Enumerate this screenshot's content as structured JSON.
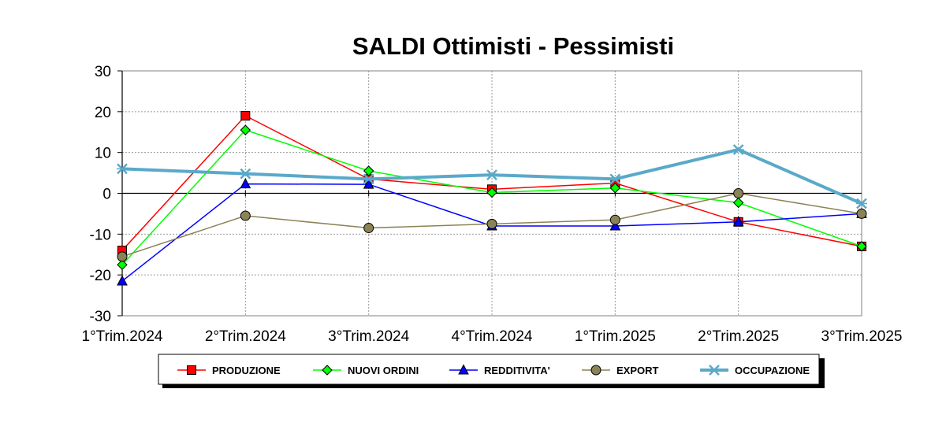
{
  "chart_data": {
    "type": "line",
    "title": "SALDI Ottimisti - Pessimisti",
    "xlabel": "",
    "ylabel": "",
    "categories": [
      "1°Trim.2024",
      "2°Trim.2024",
      "3°Trim.2024",
      "4°Trim.2024",
      "1°Trim.2025",
      "2°Trim.2025",
      "3°Trim.2025"
    ],
    "ylim": [
      -30,
      30
    ],
    "yticks": [
      30,
      20,
      10,
      0,
      -10,
      -20,
      -30
    ],
    "grid": true,
    "legend_position": "bottom",
    "series": [
      {
        "name": "PRODUZIONE",
        "color": "#ff0000",
        "marker": "square",
        "values": [
          -14,
          19,
          3.5,
          1,
          2.5,
          -7,
          -13
        ]
      },
      {
        "name": "NUOVI ORDINI",
        "color": "#00ff00",
        "marker": "diamond",
        "values": [
          -17.5,
          15.5,
          5.5,
          0.2,
          1.3,
          -2.3,
          -13
        ]
      },
      {
        "name": "REDDITIVITA'",
        "color": "#0000ff",
        "marker": "triangle",
        "values": [
          -21.5,
          2.3,
          2.2,
          -8,
          -8,
          -7,
          -5
        ]
      },
      {
        "name": "EXPORT",
        "color": "#8b8355",
        "marker": "circle",
        "values": [
          -15.5,
          -5.5,
          -8.5,
          -7.5,
          -6.5,
          0,
          -5
        ]
      },
      {
        "name": "OCCUPAZIONE",
        "color": "#5aa9c9",
        "marker": "x",
        "values": [
          6,
          4.8,
          3.5,
          4.5,
          3.5,
          10.7,
          -2.5
        ]
      }
    ]
  }
}
